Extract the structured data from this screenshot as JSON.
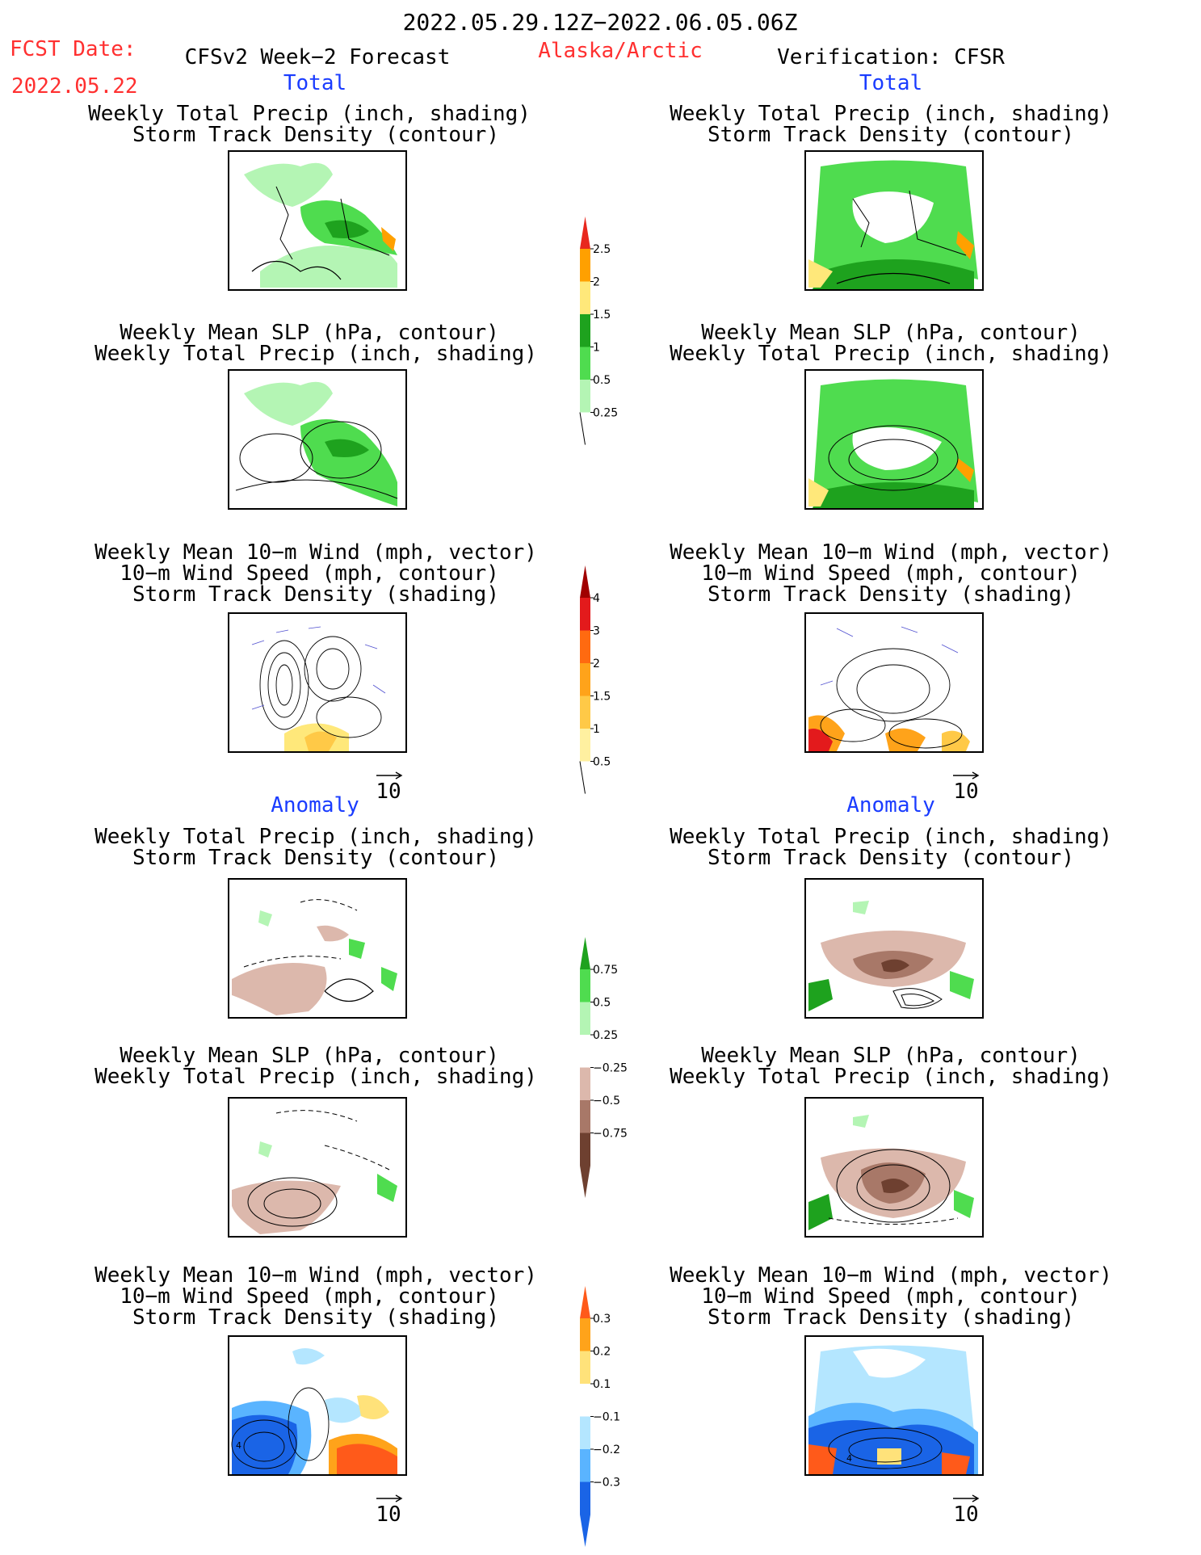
{
  "header": {
    "period": "2022.05.29.12Z−2022.06.05.06Z",
    "fcst_label": "FCST Date:",
    "fcst_date": "2022.05.22",
    "model": "CFSv2 Week−2 Forecast",
    "region": "Alaska/Arctic",
    "verification": "Verification: CFSR"
  },
  "sections": {
    "total": "Total",
    "anomaly": "Anomaly"
  },
  "titles": {
    "precip_storm": [
      "Weekly Total Precip (inch, shading)",
      "Storm Track Density (contour)"
    ],
    "slp_precip": [
      "Weekly Mean SLP (hPa, contour)",
      "Weekly Total Precip (inch, shading)"
    ],
    "wind_storm": [
      "Weekly Mean 10−m Wind (mph, vector)",
      "10−m Wind Speed (mph, contour)",
      "Storm Track Density (shading)"
    ]
  },
  "vector_ref": "10",
  "colorbars": {
    "total_precip": {
      "labels": [
        "2.5",
        "2",
        "1.5",
        "1",
        "0.5",
        "0.25"
      ],
      "colors": [
        "#e8281e",
        "#ffa000",
        "#ffe87a",
        "#1ea21e",
        "#4fdc4f",
        "#b4f5b4"
      ]
    },
    "total_storm": {
      "labels": [
        "4",
        "3",
        "2",
        "1.5",
        "1",
        "0.5"
      ],
      "colors": [
        "#a00000",
        "#e31a1c",
        "#ff6a10",
        "#ffa31a",
        "#ffc947",
        "#fff0a0"
      ]
    },
    "anom_precip": {
      "labels": [
        "0.75",
        "0.5",
        "0.25",
        "−0.25",
        "−0.5",
        "−0.75"
      ],
      "colors": [
        "#1ea21e",
        "#4fdc4f",
        "#b4f5b4",
        "#ffffff",
        "#dcb8ac",
        "#a87868",
        "#6e4030"
      ]
    },
    "anom_storm": {
      "labels": [
        "0.3",
        "0.2",
        "0.1",
        "−0.1",
        "−0.2",
        "−0.3"
      ],
      "colors": [
        "#ff5a1a",
        "#ffa31a",
        "#ffe27a",
        "#ffffff",
        "#b4e6ff",
        "#5ab4ff",
        "#1a64e6"
      ]
    }
  }
}
